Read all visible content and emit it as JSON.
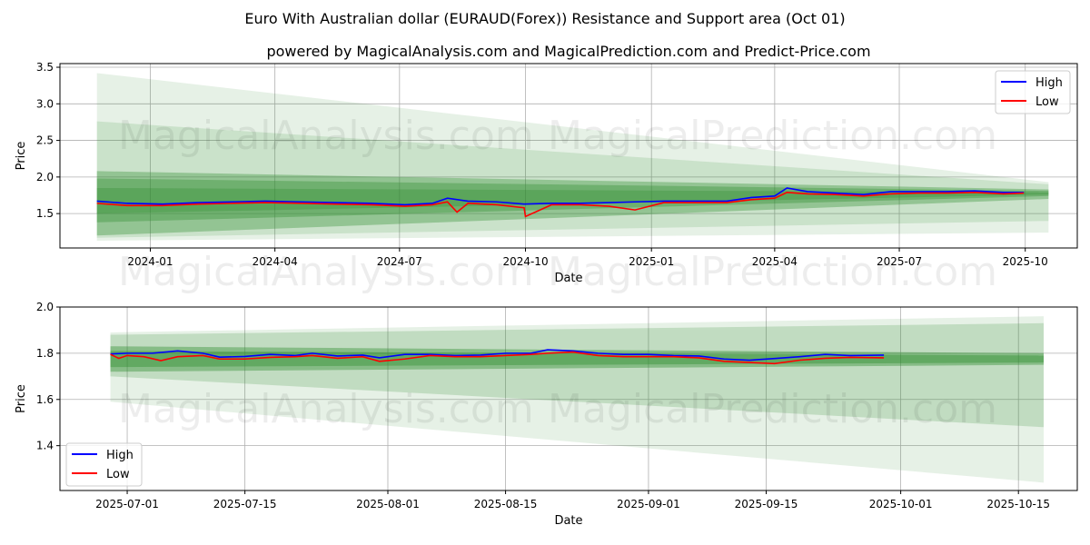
{
  "title": "Euro With Australian dollar (EURAUD(Forex)) Resistance and Support area (Oct 01)",
  "subtitle": "powered by MagicalAnalysis.com and MagicalPrediction.com and Predict-Price.com",
  "watermarks": [
    "MagicalAnalysis.com",
    "MagicalPrediction.com"
  ],
  "colors": {
    "high": "#0000ff",
    "low": "#ff0000",
    "band": "#2e8b2e"
  },
  "chart_data": [
    {
      "type": "line",
      "xlabel": "Date",
      "ylabel": "Price",
      "ylim": [
        1.03,
        3.55
      ],
      "xlim": [
        "2023-10-27",
        "2025-11-08"
      ],
      "yticks": [
        "1.5",
        "2.0",
        "2.5",
        "3.0",
        "3.5"
      ],
      "xticks": [
        "2024-01",
        "2024-04",
        "2024-07",
        "2024-10",
        "2025-01",
        "2025-04",
        "2025-07",
        "2025-10"
      ],
      "legend": {
        "position": "top-right",
        "entries": [
          "High",
          "Low"
        ]
      },
      "grid": true,
      "bands": [
        {
          "start": "2023-11-23",
          "end": "2025-10-18",
          "low": [
            1.13,
            1.24
          ],
          "high": [
            3.42,
            1.93
          ],
          "opacity": 0.12
        },
        {
          "start": "2023-11-23",
          "end": "2025-10-18",
          "low": [
            1.17,
            1.4
          ],
          "high": [
            2.76,
            1.9
          ],
          "opacity": 0.15
        },
        {
          "start": "2023-11-23",
          "end": "2025-10-18",
          "low": [
            1.2,
            1.7
          ],
          "high": [
            2.08,
            1.83
          ],
          "opacity": 0.35
        },
        {
          "start": "2023-11-23",
          "end": "2025-10-18",
          "low": [
            1.38,
            1.74
          ],
          "high": [
            1.98,
            1.81
          ],
          "opacity": 0.35
        },
        {
          "start": "2023-11-23",
          "end": "2025-10-18",
          "low": [
            1.5,
            1.76
          ],
          "high": [
            1.85,
            1.79
          ],
          "opacity": 0.3
        }
      ],
      "series": [
        {
          "name": "High",
          "x": [
            "2023-11-23",
            "2023-12-15",
            "2024-01-10",
            "2024-02-05",
            "2024-03-01",
            "2024-03-25",
            "2024-04-20",
            "2024-05-15",
            "2024-06-10",
            "2024-07-05",
            "2024-07-25",
            "2024-08-05",
            "2024-08-20",
            "2024-09-10",
            "2024-09-30",
            "2024-10-20",
            "2024-11-10",
            "2024-12-01",
            "2024-12-20",
            "2025-01-10",
            "2025-02-01",
            "2025-02-25",
            "2025-03-15",
            "2025-04-01",
            "2025-04-10",
            "2025-04-25",
            "2025-05-15",
            "2025-06-05",
            "2025-06-25",
            "2025-07-15",
            "2025-08-05",
            "2025-08-25",
            "2025-09-15",
            "2025-09-30"
          ],
          "values": [
            1.67,
            1.64,
            1.63,
            1.65,
            1.66,
            1.67,
            1.66,
            1.65,
            1.64,
            1.62,
            1.64,
            1.71,
            1.67,
            1.66,
            1.63,
            1.64,
            1.64,
            1.65,
            1.66,
            1.67,
            1.67,
            1.67,
            1.72,
            1.74,
            1.85,
            1.8,
            1.78,
            1.76,
            1.8,
            1.8,
            1.8,
            1.81,
            1.79,
            1.79
          ]
        },
        {
          "name": "Low",
          "x": [
            "2023-11-23",
            "2023-12-15",
            "2024-01-10",
            "2024-02-05",
            "2024-03-01",
            "2024-03-25",
            "2024-04-20",
            "2024-05-15",
            "2024-06-10",
            "2024-07-05",
            "2024-07-25",
            "2024-08-05",
            "2024-08-12",
            "2024-08-20",
            "2024-09-10",
            "2024-09-30",
            "2024-10-01",
            "2024-10-20",
            "2024-11-10",
            "2024-12-01",
            "2024-12-20",
            "2025-01-10",
            "2025-02-01",
            "2025-02-25",
            "2025-03-15",
            "2025-04-01",
            "2025-04-10",
            "2025-04-25",
            "2025-05-15",
            "2025-06-05",
            "2025-06-25",
            "2025-07-15",
            "2025-08-05",
            "2025-08-25",
            "2025-09-15",
            "2025-09-30"
          ],
          "values": [
            1.64,
            1.61,
            1.61,
            1.63,
            1.64,
            1.65,
            1.64,
            1.63,
            1.62,
            1.6,
            1.62,
            1.66,
            1.52,
            1.64,
            1.62,
            1.58,
            1.46,
            1.62,
            1.62,
            1.6,
            1.55,
            1.65,
            1.65,
            1.65,
            1.69,
            1.71,
            1.79,
            1.77,
            1.76,
            1.74,
            1.77,
            1.78,
            1.78,
            1.79,
            1.77,
            1.78
          ]
        }
      ]
    },
    {
      "type": "line",
      "xlabel": "Date",
      "ylabel": "Price",
      "ylim": [
        1.206,
        2.0
      ],
      "xlim": [
        "2025-06-23",
        "2025-10-22"
      ],
      "yticks": [
        "1.4",
        "1.6",
        "1.8",
        "2.0"
      ],
      "xticks": [
        "2025-07-01",
        "2025-07-15",
        "2025-08-01",
        "2025-08-15",
        "2025-09-01",
        "2025-09-15",
        "2025-10-01",
        "2025-10-15"
      ],
      "legend": {
        "position": "bottom-left",
        "entries": [
          "High",
          "Low"
        ]
      },
      "grid": true,
      "bands": [
        {
          "start": "2025-06-29",
          "end": "2025-10-18",
          "low": [
            1.59,
            1.24
          ],
          "high": [
            1.89,
            1.96
          ],
          "opacity": 0.12
        },
        {
          "start": "2025-06-29",
          "end": "2025-10-18",
          "low": [
            1.7,
            1.48
          ],
          "high": [
            1.88,
            1.93
          ],
          "opacity": 0.2
        },
        {
          "start": "2025-06-29",
          "end": "2025-10-18",
          "low": [
            1.72,
            1.75
          ],
          "high": [
            1.83,
            1.8
          ],
          "opacity": 0.4
        },
        {
          "start": "2025-06-29",
          "end": "2025-10-18",
          "low": [
            1.74,
            1.76
          ],
          "high": [
            1.81,
            1.79
          ],
          "opacity": 0.4
        }
      ],
      "series": [
        {
          "name": "High",
          "x": [
            "2025-06-29",
            "2025-07-01",
            "2025-07-04",
            "2025-07-07",
            "2025-07-10",
            "2025-07-12",
            "2025-07-15",
            "2025-07-18",
            "2025-07-21",
            "2025-07-23",
            "2025-07-26",
            "2025-07-29",
            "2025-07-31",
            "2025-08-03",
            "2025-08-06",
            "2025-08-09",
            "2025-08-12",
            "2025-08-15",
            "2025-08-18",
            "2025-08-20",
            "2025-08-23",
            "2025-08-26",
            "2025-08-29",
            "2025-09-01",
            "2025-09-04",
            "2025-09-07",
            "2025-09-10",
            "2025-09-13",
            "2025-09-16",
            "2025-09-19",
            "2025-09-22",
            "2025-09-25",
            "2025-09-29"
          ],
          "values": [
            1.797,
            1.8,
            1.8,
            1.81,
            1.8,
            1.783,
            1.786,
            1.795,
            1.79,
            1.8,
            1.788,
            1.792,
            1.78,
            1.795,
            1.795,
            1.79,
            1.792,
            1.8,
            1.8,
            1.815,
            1.81,
            1.8,
            1.795,
            1.795,
            1.79,
            1.788,
            1.775,
            1.77,
            1.777,
            1.785,
            1.795,
            1.79,
            1.792
          ]
        },
        {
          "name": "Low",
          "x": [
            "2025-06-29",
            "2025-06-30",
            "2025-07-01",
            "2025-07-03",
            "2025-07-05",
            "2025-07-07",
            "2025-07-10",
            "2025-07-12",
            "2025-07-15",
            "2025-07-18",
            "2025-07-21",
            "2025-07-23",
            "2025-07-26",
            "2025-07-29",
            "2025-07-31",
            "2025-08-03",
            "2025-08-06",
            "2025-08-09",
            "2025-08-12",
            "2025-08-15",
            "2025-08-18",
            "2025-08-20",
            "2025-08-23",
            "2025-08-26",
            "2025-08-29",
            "2025-09-01",
            "2025-09-04",
            "2025-09-07",
            "2025-09-10",
            "2025-09-13",
            "2025-09-16",
            "2025-09-19",
            "2025-09-22",
            "2025-09-25",
            "2025-09-29"
          ],
          "values": [
            1.795,
            1.778,
            1.79,
            1.785,
            1.768,
            1.785,
            1.79,
            1.775,
            1.775,
            1.782,
            1.785,
            1.79,
            1.778,
            1.785,
            1.765,
            1.775,
            1.79,
            1.785,
            1.785,
            1.79,
            1.795,
            1.8,
            1.805,
            1.79,
            1.785,
            1.785,
            1.785,
            1.78,
            1.765,
            1.76,
            1.755,
            1.77,
            1.778,
            1.782,
            1.78
          ]
        }
      ]
    }
  ]
}
